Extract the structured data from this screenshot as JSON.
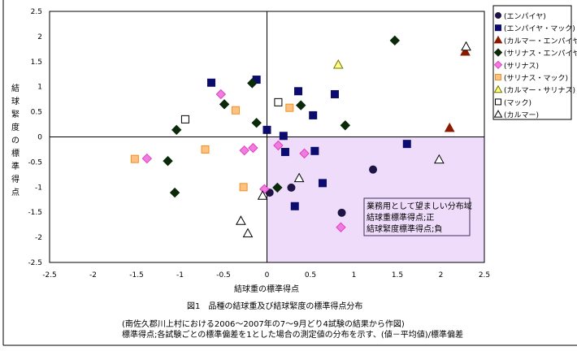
{
  "chart_data": {
    "type": "scatter",
    "title": "図1　品種の結球重及び結球緊度の標準得点分布",
    "notes": [
      "(南佐久郡川上村における2006～2007年の7～9月どり4試験の結果から作図)",
      "標準得点;各試験ごとの標準偏差を1とした場合の測定値の分布を示す、(値－平均値)/標準偏差"
    ],
    "xlabel": "結球重の標準得点",
    "ylabel": "結球緊度の標準得点",
    "xlim": [
      -2.5,
      2.5
    ],
    "ylim": [
      -2.5,
      2.5
    ],
    "xticks": [
      "-2.5",
      "-2",
      "-1.5",
      "-1",
      "-0.5",
      "0",
      "0.5",
      "1",
      "1.5",
      "2",
      "2.5"
    ],
    "yticks": [
      "2.5",
      "2",
      "1.5",
      "1",
      "0.5",
      "0",
      "-0.5",
      "-1",
      "-1.5",
      "-2",
      "-2.5"
    ],
    "legend_position": "right",
    "region": {
      "x": [
        0,
        2.5
      ],
      "y": [
        -2.5,
        0
      ],
      "color": "#eedcfa",
      "lines": [
        "業務用として望ましい分布域",
        "結球重標準得点;正",
        "結球緊度標準得点;負"
      ]
    },
    "series": [
      {
        "name": "(エンパイヤ)",
        "marker": "circle",
        "color": "#1e1446",
        "fill": "#1e1446",
        "points": [
          [
            0.03,
            -1.11
          ],
          [
            0.28,
            -1.01
          ],
          [
            1.22,
            -0.65
          ],
          [
            0.86,
            -1.51
          ]
        ]
      },
      {
        "name": "(エンパイヤ・マック)",
        "marker": "square",
        "color": "#0c0c6e",
        "fill": "#0c0c6e",
        "points": [
          [
            -0.64,
            1.08
          ],
          [
            -0.12,
            1.14
          ],
          [
            0.0,
            0.14
          ],
          [
            0.36,
            0.91
          ],
          [
            0.53,
            0.43
          ],
          [
            0.78,
            0.85
          ],
          [
            0.19,
            0.02
          ],
          [
            0.21,
            -0.3
          ],
          [
            0.55,
            -0.28
          ],
          [
            1.61,
            -0.14
          ],
          [
            0.64,
            -0.92
          ],
          [
            0.32,
            -1.38
          ]
        ]
      },
      {
        "name": "(カルマー・エンパイヤ)",
        "marker": "triangle",
        "color": "#8b1a00",
        "fill": "#8b1a00",
        "points": [
          [
            2.28,
            1.7
          ],
          [
            2.1,
            0.18
          ]
        ]
      },
      {
        "name": "(サリナス・エンパイヤ)",
        "marker": "diamond",
        "color": "#0a2a0a",
        "fill": "#0a2a0a",
        "points": [
          [
            1.47,
            1.92
          ],
          [
            -0.17,
            1.07
          ],
          [
            -0.49,
            0.65
          ],
          [
            -0.12,
            0.28
          ],
          [
            0.39,
            0.63
          ],
          [
            0.9,
            0.23
          ],
          [
            -1.04,
            0.14
          ],
          [
            -1.14,
            -0.48
          ],
          [
            -1.06,
            -1.11
          ],
          [
            0.12,
            -1.01
          ]
        ]
      },
      {
        "name": "(サリナス)",
        "marker": "diamond",
        "color": "#e040c0",
        "fill": "#f07ce0",
        "points": [
          [
            -0.53,
            0.85
          ],
          [
            -0.26,
            -0.27
          ],
          [
            -0.16,
            -0.22
          ],
          [
            0.13,
            -0.17
          ],
          [
            0.43,
            -0.33
          ],
          [
            -0.03,
            -1.04
          ],
          [
            0.85,
            -1.8
          ],
          [
            -1.38,
            -0.43
          ]
        ]
      },
      {
        "name": "(サリナス・マック)",
        "marker": "square",
        "color": "#f09020",
        "fill": "#ffc080",
        "points": [
          [
            -0.36,
            0.53
          ],
          [
            0.26,
            0.58
          ],
          [
            -0.71,
            -0.25
          ],
          [
            -1.52,
            -0.44
          ],
          [
            -0.27,
            -1.0
          ]
        ]
      },
      {
        "name": "(カルマー・サリナス)",
        "marker": "triangle",
        "color": "#707000",
        "fill": "#ffff80",
        "points": [
          [
            0.82,
            1.44
          ]
        ]
      },
      {
        "name": "(マック)",
        "marker": "square",
        "color": "#000000",
        "fill": "#ffffff",
        "points": [
          [
            -0.94,
            0.35
          ],
          [
            0.13,
            0.69
          ]
        ]
      },
      {
        "name": "(カルマー)",
        "marker": "triangle",
        "color": "#000000",
        "fill": "#ffffff",
        "points": [
          [
            2.29,
            1.8
          ],
          [
            1.98,
            -0.45
          ],
          [
            0.37,
            -0.82
          ],
          [
            -0.05,
            -1.17
          ],
          [
            -0.3,
            -1.67
          ],
          [
            -0.22,
            -1.92
          ]
        ]
      }
    ]
  }
}
